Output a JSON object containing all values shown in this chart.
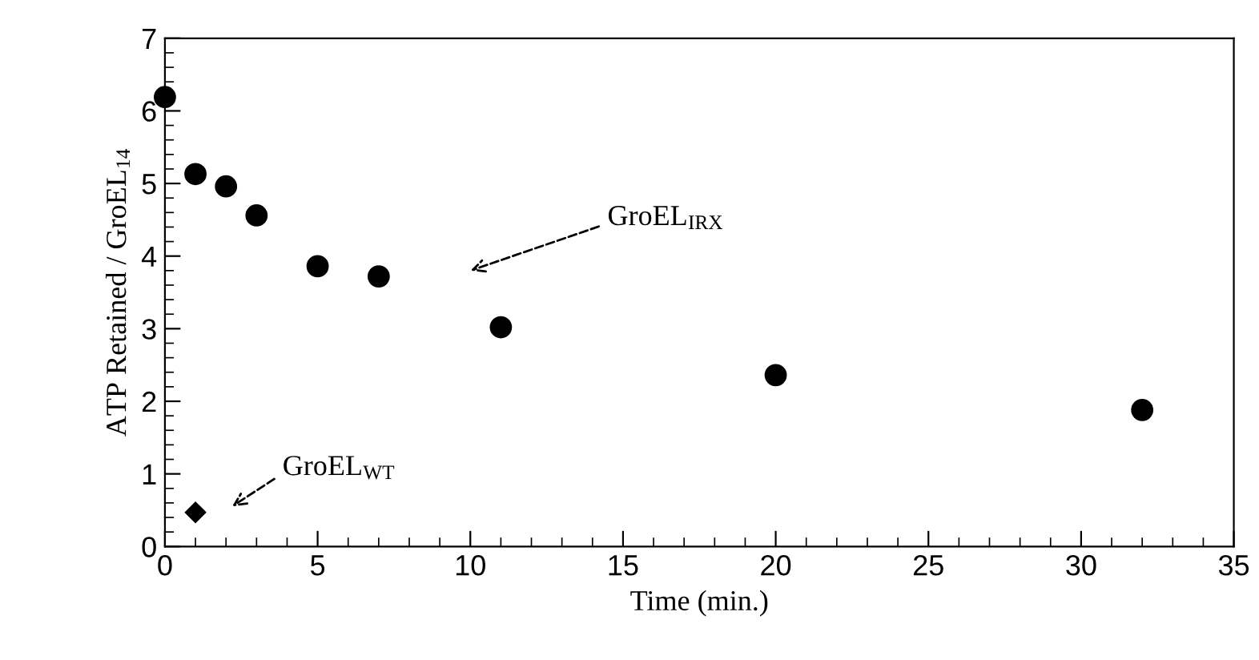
{
  "chart_data": {
    "type": "scatter",
    "xlabel": "Time (min.)",
    "ylabel": "ATP Retained / GroEL$_{14}$",
    "xlim": [
      0,
      35
    ],
    "ylim": [
      0,
      7
    ],
    "xticks": [
      0,
      5,
      10,
      15,
      20,
      25,
      30,
      35
    ],
    "yticks": [
      0,
      1,
      2,
      3,
      4,
      5,
      6,
      7
    ],
    "grid": false,
    "legend": false,
    "series": [
      {
        "color": "#000000",
        "marker": "circle",
        "x": [
          0,
          1,
          2,
          3,
          5,
          7,
          11,
          20,
          32
        ],
        "values": [
          6.19,
          5.13,
          4.96,
          4.56,
          3.86,
          3.72,
          3.02,
          2.36,
          1.88
        ]
      },
      {
        "color": "#000000",
        "marker": "diamond",
        "x": [
          1
        ],
        "values": [
          0.47
        ]
      }
    ],
    "annotations": [
      "GroEL$_{IRX}$",
      "GroEL$_{WT}$"
    ]
  }
}
